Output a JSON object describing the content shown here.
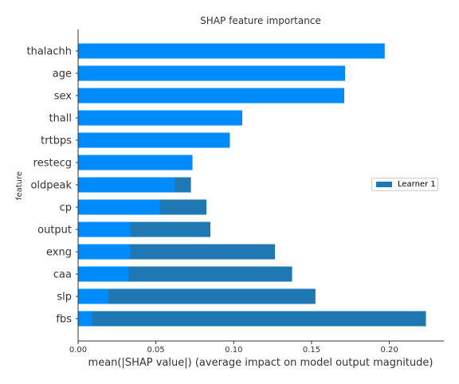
{
  "chart_data": {
    "type": "bar",
    "orientation": "horizontal",
    "title": "SHAP feature importance",
    "xlabel": "mean(|SHAP value|) (average impact on model output magnitude)",
    "ylabel": "feature",
    "xlim": [
      0,
      0.235
    ],
    "xticks": [
      "0.00",
      "0.05",
      "0.10",
      "0.15",
      "0.20"
    ],
    "categories": [
      "thalachh",
      "age",
      "sex",
      "thall",
      "trtbps",
      "restecg",
      "oldpeak",
      "cp",
      "output",
      "exng",
      "caa",
      "slp",
      "fbs"
    ],
    "series": [
      {
        "name": "Learner 1",
        "color": "#1f77b4",
        "values": [
          0.0,
          0.0,
          0.0,
          0.0,
          0.0,
          0.0,
          0.0725,
          0.0825,
          0.085,
          0.1265,
          0.1375,
          0.1525,
          0.2235
        ]
      },
      {
        "color": "#008bfb",
        "values": [
          0.197,
          0.1715,
          0.171,
          0.1055,
          0.0975,
          0.0735,
          0.062,
          0.0525,
          0.0335,
          0.0335,
          0.0325,
          0.0195,
          0.009
        ]
      }
    ],
    "grid": false,
    "legend_position": "right"
  }
}
